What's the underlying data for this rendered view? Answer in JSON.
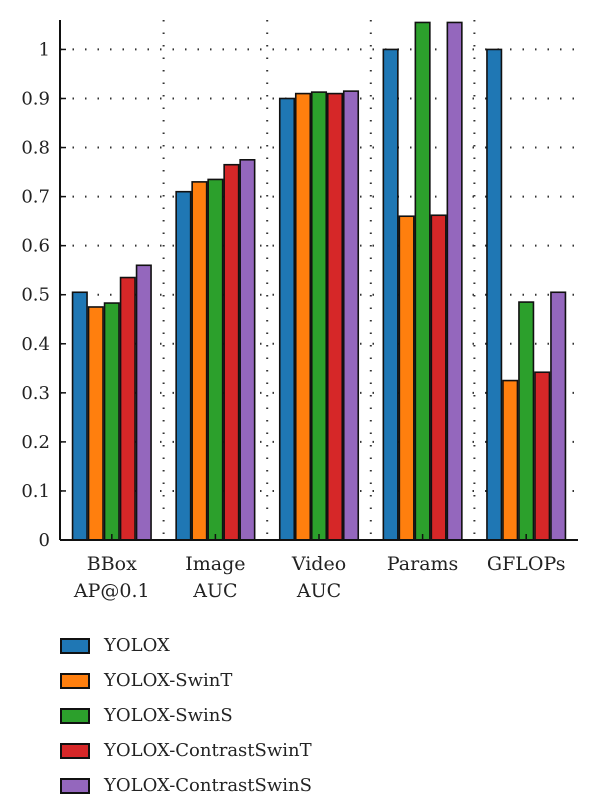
{
  "chart_data": {
    "type": "bar",
    "categories": [
      [
        "BBox",
        "AP@0.1"
      ],
      [
        "Image",
        "AUC"
      ],
      [
        "Video",
        "AUC"
      ],
      [
        "Params"
      ],
      [
        "GFLOPs"
      ]
    ],
    "series": [
      {
        "name": "YOLOX",
        "color": "#1f77b4",
        "values": [
          0.505,
          0.71,
          0.9,
          1.0,
          1.0
        ]
      },
      {
        "name": "YOLOX-SwinT",
        "color": "#ff7f0e",
        "values": [
          0.475,
          0.73,
          0.91,
          0.66,
          0.325
        ]
      },
      {
        "name": "YOLOX-SwinS",
        "color": "#2ca02c",
        "values": [
          0.483,
          0.735,
          0.913,
          1.055,
          0.485
        ]
      },
      {
        "name": "YOLOX-ContrastSwinT",
        "color": "#d62728",
        "values": [
          0.535,
          0.765,
          0.91,
          0.662,
          0.342
        ]
      },
      {
        "name": "YOLOX-ContrastSwinS",
        "color": "#9467bd",
        "values": [
          0.56,
          0.775,
          0.915,
          1.055,
          0.505
        ]
      }
    ],
    "yticks": [
      "0",
      "0.1",
      "0.2",
      "0.3",
      "0.4",
      "0.5",
      "0.6",
      "0.7",
      "0.8",
      "0.9",
      "1"
    ],
    "ylim": [
      0,
      1.06
    ],
    "grid": true,
    "grid_style": "dotted",
    "legend_position": "bottom-left"
  }
}
